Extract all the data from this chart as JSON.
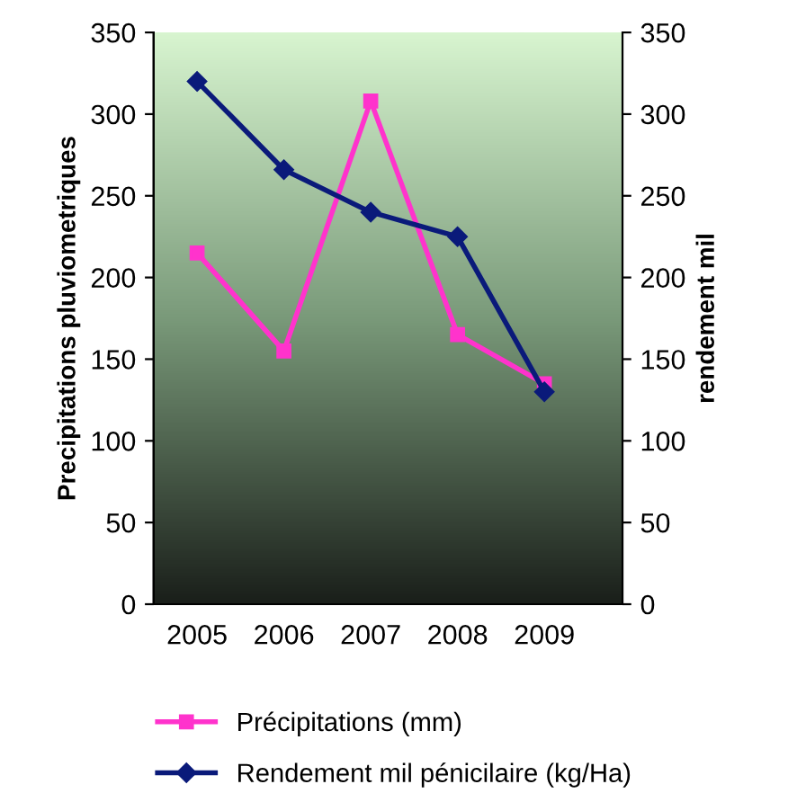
{
  "chart_data": {
    "type": "line",
    "categories": [
      "2005",
      "2006",
      "2007",
      "2008",
      "2009"
    ],
    "series": [
      {
        "name": "Précipitations (mm)",
        "color": "#ff33cc",
        "marker": "square",
        "values": [
          215,
          155,
          308,
          165,
          135
        ]
      },
      {
        "name": "Rendement mil pénicilaire (kg/Ha)",
        "color": "#0a1a7a",
        "marker": "diamond",
        "values": [
          320,
          266,
          240,
          225,
          130
        ]
      }
    ],
    "ylabel": "Precipitations pluviometriques",
    "y2label": "rendement mil",
    "ylim": [
      0,
      350
    ],
    "yticks": [
      0,
      50,
      100,
      150,
      200,
      250,
      300,
      350
    ],
    "y2lim": [
      0,
      350
    ],
    "y2ticks": [
      0,
      50,
      100,
      150,
      200,
      250,
      300,
      350
    ],
    "legend": "bottom",
    "grid": false,
    "line_style": "solid"
  }
}
